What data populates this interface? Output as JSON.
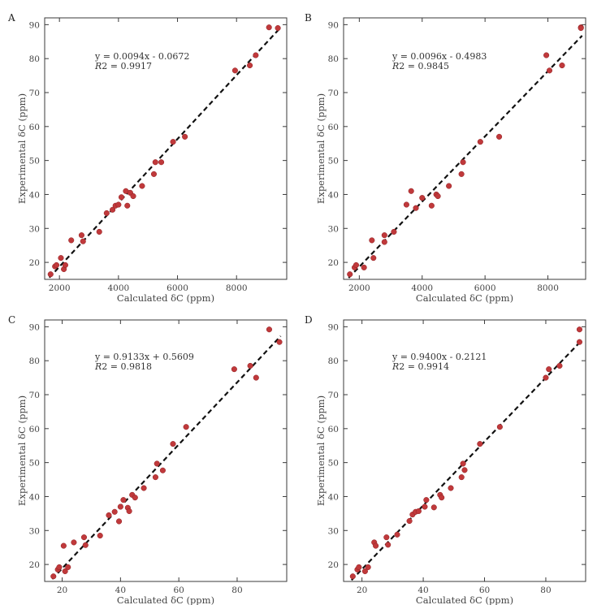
{
  "chart_data": [
    {
      "type": "scatter",
      "panel_label": "A",
      "xlabel": "Calculated δC (ppm)",
      "ylabel": "Experimental δC (ppm)",
      "xlim": [
        1500,
        9700
      ],
      "ylim": [
        15,
        92
      ],
      "xticks": [
        2000,
        4000,
        6000,
        8000
      ],
      "yticks": [
        20,
        30,
        40,
        50,
        60,
        70,
        80,
        90
      ],
      "equation": "y = 0.0094x - 0.0672",
      "r2_label": "R",
      "r2_value": "2 = 0.9917",
      "fit": {
        "slope": 0.0094,
        "intercept": -0.0672
      },
      "x": [
        1700,
        1850,
        1900,
        2050,
        2150,
        2200,
        2400,
        2750,
        2800,
        3350,
        3600,
        3800,
        3900,
        4000,
        4100,
        4250,
        4300,
        4400,
        4500,
        4800,
        5200,
        5250,
        5450,
        5850,
        6250,
        7950,
        8450,
        8650,
        9100,
        9400
      ],
      "y": [
        16.5,
        18.8,
        19.2,
        21.3,
        18.0,
        19.2,
        26.5,
        28.0,
        26.2,
        29.0,
        34.5,
        35.5,
        36.7,
        37.0,
        39.2,
        41.0,
        36.7,
        40.5,
        39.5,
        42.5,
        46.0,
        49.5,
        49.5,
        55.5,
        57.0,
        76.5,
        78.0,
        81.0,
        89.2,
        89.0
      ]
    },
    {
      "type": "scatter",
      "panel_label": "B",
      "xlabel": "Calculated δC (ppm)",
      "ylabel": "Experimental δC (ppm)",
      "xlim": [
        1500,
        9200
      ],
      "ylim": [
        15,
        92
      ],
      "xticks": [
        2000,
        4000,
        6000,
        8000
      ],
      "yticks": [
        20,
        30,
        40,
        50,
        60,
        70,
        80,
        90
      ],
      "equation": "y = 0.0096x - 0.4983",
      "r2_label": "R",
      "r2_value": "2 = 0.9845",
      "fit": {
        "slope": 0.0096,
        "intercept": -0.4983
      },
      "x": [
        1700,
        1850,
        1900,
        2150,
        2400,
        2450,
        2800,
        2800,
        3100,
        3500,
        3650,
        3800,
        4000,
        4300,
        4450,
        4500,
        4850,
        5250,
        5300,
        5850,
        6450,
        7950,
        8050,
        8450,
        9050,
        9050
      ],
      "y": [
        16.5,
        18.5,
        19.2,
        18.5,
        26.5,
        21.3,
        28.0,
        26.0,
        29.0,
        37.0,
        41.0,
        36.0,
        39.0,
        36.7,
        40.0,
        39.5,
        42.5,
        46.0,
        49.5,
        55.5,
        57.0,
        81.0,
        76.5,
        78.0,
        89.2,
        89.0
      ]
    },
    {
      "type": "scatter",
      "panel_label": "C",
      "xlabel": "Calculated δC (ppm)",
      "ylabel": "Experimental δC (ppm)",
      "xlim": [
        14,
        97
      ],
      "ylim": [
        15,
        92
      ],
      "xticks": [
        20,
        40,
        60,
        80
      ],
      "yticks": [
        20,
        30,
        40,
        50,
        60,
        70,
        80,
        90
      ],
      "equation": "y = 0.9133x + 0.5609",
      "r2_label": "R",
      "r2_value": "2 = 0.9818",
      "fit": {
        "slope": 0.9133,
        "intercept": 0.5609
      },
      "x": [
        17,
        18.5,
        19,
        20.5,
        21,
        22,
        24,
        27.5,
        28,
        33,
        36,
        38,
        39.5,
        40,
        41,
        42.5,
        43,
        44,
        45,
        48,
        52,
        52.5,
        54.5,
        58,
        62.5,
        79,
        84.5,
        86.5,
        91,
        94.5
      ],
      "y": [
        16.5,
        18.5,
        19.2,
        25.5,
        18.0,
        19.2,
        26.5,
        28.0,
        25.7,
        28.5,
        34.5,
        35.5,
        32.7,
        37.0,
        39.0,
        36.7,
        35.7,
        40.5,
        39.7,
        42.5,
        45.7,
        49.7,
        47.7,
        55.5,
        60.5,
        77.5,
        78.5,
        75.0,
        89.2,
        85.5
      ]
    },
    {
      "type": "scatter",
      "panel_label": "D",
      "xlabel": "Calculated δC (ppm)",
      "ylabel": "Experimental δC (ppm)",
      "xlim": [
        14,
        93
      ],
      "ylim": [
        15,
        92
      ],
      "xticks": [
        20,
        40,
        60,
        80
      ],
      "yticks": [
        20,
        30,
        40,
        50,
        60,
        70,
        80,
        90
      ],
      "equation": "y = 0.9400x - 0.2121",
      "r2_label": "R",
      "r2_value": "2 = 0.9914",
      "fit": {
        "slope": 0.94,
        "intercept": -0.2121
      },
      "x": [
        17,
        18.5,
        19,
        21,
        22,
        24,
        24.5,
        28,
        28.5,
        31.5,
        35.5,
        36.5,
        37.5,
        38.5,
        40.5,
        41,
        43.5,
        45.5,
        46,
        49,
        52.5,
        53,
        53.5,
        58.5,
        65,
        80,
        81,
        84.5,
        91,
        91
      ],
      "y": [
        16.5,
        18.5,
        19.2,
        18.0,
        19.2,
        26.5,
        25.5,
        28.0,
        25.8,
        28.8,
        32.8,
        34.7,
        35.5,
        35.7,
        37.0,
        39.0,
        36.8,
        40.5,
        39.7,
        42.5,
        45.7,
        49.7,
        47.8,
        55.5,
        60.5,
        75.0,
        77.5,
        78.5,
        89.2,
        85.5
      ]
    }
  ]
}
